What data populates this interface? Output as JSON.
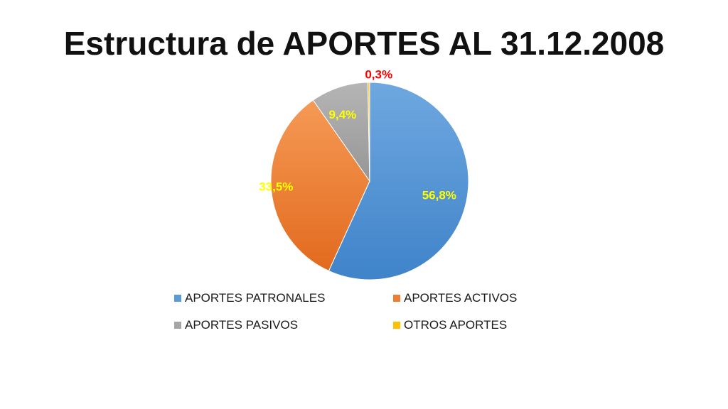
{
  "chart_data": {
    "type": "pie",
    "title": "Estructura de APORTES AL 31.12.2008",
    "categories": [
      "APORTES PATRONALES",
      "APORTES ACTIVOS",
      "APORTES PASIVOS",
      "OTROS APORTES"
    ],
    "values": [
      56.8,
      33.5,
      9.4,
      0.3
    ],
    "labels": [
      "56,8%",
      "33,5%",
      "9,4%",
      "0,3%"
    ],
    "colors": [
      "#5B9BD5",
      "#ED7D31",
      "#A5A5A5",
      "#FFC000"
    ],
    "label_colors": [
      "#FFFF00",
      "#FFFF00",
      "#FFFF00",
      "#FF0000"
    ],
    "legend_position": "bottom",
    "start_angle": "12 o'clock",
    "direction": "clockwise"
  }
}
